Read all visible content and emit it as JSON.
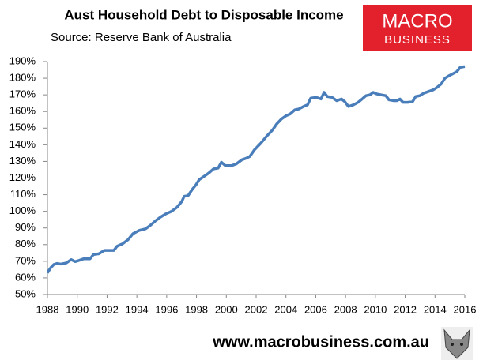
{
  "chart_data": {
    "type": "line",
    "title": "Aust Household Debt to Disposable Income",
    "subtitle": "Source: Reserve Bank of Australia",
    "x": [
      1988.0,
      1988.21,
      1988.42,
      1988.64,
      1988.9,
      1989.27,
      1989.59,
      1989.86,
      1990.12,
      1990.44,
      1990.86,
      1991.08,
      1991.45,
      1991.82,
      1992.45,
      1992.67,
      1993.04,
      1993.41,
      1993.73,
      1994.15,
      1994.58,
      1994.89,
      1995.21,
      1995.58,
      1995.95,
      1996.33,
      1996.7,
      1997.02,
      1997.17,
      1997.44,
      1997.7,
      1997.97,
      1998.18,
      1998.5,
      1998.82,
      1999.14,
      1999.45,
      1999.67,
      1999.93,
      2000.36,
      2000.67,
      2001.05,
      2001.36,
      2001.58,
      2001.89,
      2002.32,
      2002.74,
      2003.11,
      2003.38,
      2003.7,
      2004.02,
      2004.28,
      2004.6,
      2004.86,
      2005.18,
      2005.45,
      2005.66,
      2006.03,
      2006.35,
      2006.56,
      2006.77,
      2007.09,
      2007.41,
      2007.73,
      2007.94,
      2008.2,
      2008.52,
      2008.84,
      2009.11,
      2009.37,
      2009.64,
      2009.85,
      2010.11,
      2010.38,
      2010.7,
      2010.91,
      2011.23,
      2011.44,
      2011.65,
      2011.86,
      2012.18,
      2012.5,
      2012.71,
      2012.98,
      2013.24,
      2013.56,
      2013.88,
      2014.14,
      2014.41,
      2014.67,
      2014.94,
      2015.26,
      2015.47,
      2015.69,
      2016.0
    ],
    "series": [
      {
        "color": "#4a7ebb",
        "values": [
          63,
          66,
          68,
          68.7,
          68.3,
          69,
          71,
          69.8,
          70.5,
          71.5,
          71.5,
          74,
          74.5,
          76.5,
          76.5,
          79,
          80.5,
          83,
          86.5,
          88.5,
          89.5,
          91.5,
          94,
          96.5,
          98.5,
          100,
          102.5,
          106,
          109,
          109.5,
          113,
          116,
          119,
          121,
          123,
          125.5,
          126,
          129.5,
          127.5,
          127.5,
          128.5,
          131,
          132,
          133,
          137,
          141,
          145.5,
          149,
          152.5,
          155.5,
          157.5,
          158.5,
          161,
          161.5,
          163,
          164,
          168,
          168.5,
          167.5,
          171.5,
          169,
          168.5,
          166.5,
          167.5,
          166,
          163,
          164,
          165.5,
          167.5,
          169.5,
          170,
          171.5,
          170.5,
          170,
          169.5,
          167,
          166.5,
          166.5,
          167.5,
          165.5,
          165.5,
          166,
          169,
          169.5,
          171,
          172,
          173,
          174.5,
          176.5,
          180,
          181.5,
          183,
          184,
          186.5,
          187
        ]
      }
    ],
    "xlim": [
      1988,
      2016
    ],
    "xticks": [
      1988,
      1990,
      1992,
      1994,
      1996,
      1998,
      2000,
      2002,
      2004,
      2006,
      2008,
      2010,
      2012,
      2014,
      2016
    ],
    "ylim": [
      50,
      190
    ],
    "yticks": [
      {
        "value": 50,
        "label": "50%"
      },
      {
        "value": 60,
        "label": "60%"
      },
      {
        "value": 70,
        "label": "70%"
      },
      {
        "value": 80,
        "label": "80%"
      },
      {
        "value": 90,
        "label": "90%"
      },
      {
        "value": 100,
        "label": "100%"
      },
      {
        "value": 110,
        "label": "110%"
      },
      {
        "value": 120,
        "label": "120%"
      },
      {
        "value": 130,
        "label": "130%"
      },
      {
        "value": 140,
        "label": "140%"
      },
      {
        "value": 150,
        "label": "150%"
      },
      {
        "value": 160,
        "label": "160%"
      },
      {
        "value": 170,
        "label": "170%"
      },
      {
        "value": 180,
        "label": "180%"
      },
      {
        "value": 190,
        "label": "190%"
      }
    ],
    "grid": false
  },
  "logo": [
    "MACRO",
    "BUSINESS"
  ],
  "footer": "www.macrobusiness.com.au"
}
